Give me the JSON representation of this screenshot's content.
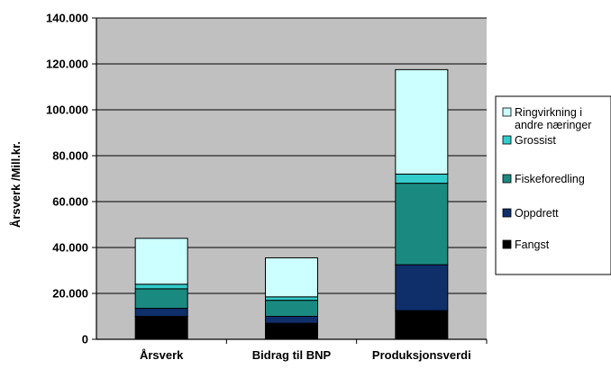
{
  "chart_data": {
    "type": "bar",
    "stacked": true,
    "categories": [
      "Årsverk",
      "Bidrag til BNP",
      "Produksjonsverdi"
    ],
    "series": [
      {
        "name": "Fangst",
        "values": [
          10000,
          7000,
          12500
        ],
        "color": "#000000"
      },
      {
        "name": "Oppdrett",
        "values": [
          3500,
          3000,
          20000
        ],
        "color": "#0f2f6b"
      },
      {
        "name": "Fiskeforedling",
        "values": [
          8500,
          7000,
          35500
        ],
        "color": "#1a8a80"
      },
      {
        "name": "Grossist",
        "values": [
          2000,
          1500,
          4000
        ],
        "color": "#33cccc"
      },
      {
        "name": "Ringvirkning i andre næringer",
        "values": [
          20000,
          17000,
          45500
        ],
        "color": "#ccffff"
      }
    ],
    "ylim": [
      0,
      140000
    ],
    "yticks": [
      "0",
      "20.000",
      "40.000",
      "60.000",
      "80.000",
      "100.000",
      "120.000",
      "140.000"
    ],
    "ytick_values": [
      0,
      20000,
      40000,
      60000,
      80000,
      100000,
      120000,
      140000
    ],
    "ylabel": "Årsverk /Mill.kr.",
    "xlabel": "",
    "grid": true,
    "plot_background": "#c0c0c0",
    "legend_position": "right",
    "legend_order": [
      "Ringvirkning i andre næringer",
      "Grossist",
      "Fiskeforedling",
      "Oppdrett",
      "Fangst"
    ],
    "legend_label_lines": {
      "Ringvirkning i andre næringer": [
        "Ringvirkning i",
        "andre næringer"
      ]
    }
  }
}
